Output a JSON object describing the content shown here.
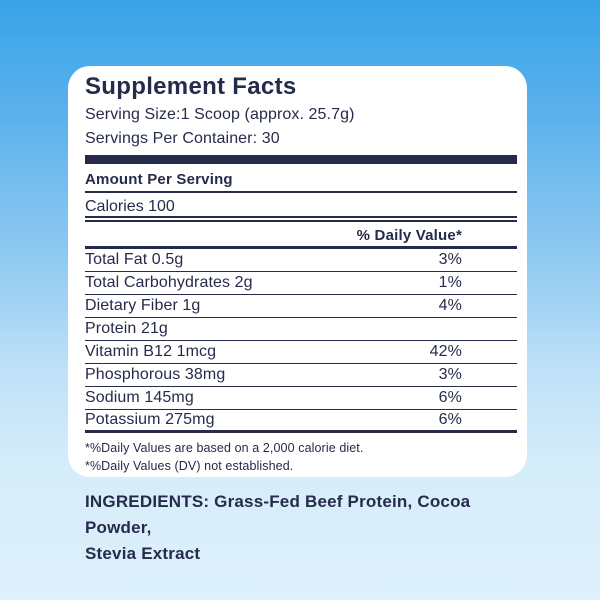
{
  "colors": {
    "background_top": "#38a3e8",
    "background_bottom": "#ddf0fb",
    "navy_text": "#262b4b",
    "card_background": "#ffffff"
  },
  "card": {
    "title": "Supplement Facts",
    "serving_size": "Serving Size:1 Scoop (approx. 25.7g)",
    "servings_per_container": "Servings Per Container: 30",
    "amount_per_serving": "Amount Per Serving",
    "calories": "Calories 100",
    "daily_value_header": "% Daily Value*",
    "rows": [
      {
        "label": "Total Fat 0.5g",
        "value": "3%"
      },
      {
        "label": "Total Carbohydrates 2g",
        "value": "1%"
      },
      {
        "label": "Dietary Fiber 1g",
        "value": "4%"
      },
      {
        "label": "Protein 21g",
        "value": ""
      },
      {
        "label": "Vitamin B12  1mcg",
        "value": "42%"
      },
      {
        "label": "Phosphorous 38mg",
        "value": "3%"
      },
      {
        "label": "Sodium 145mg",
        "value": "6%"
      },
      {
        "label": "Potassium 275mg",
        "value": "6%"
      }
    ],
    "footnotes": [
      "*%Daily Values are based on a 2,000 calorie diet.",
      "*%Daily Values (DV) not established."
    ]
  },
  "ingredients": {
    "lines": [
      "INGREDIENTS: Grass-Fed Beef Protein, Cocoa Powder,",
      "Stevia Extract"
    ]
  }
}
